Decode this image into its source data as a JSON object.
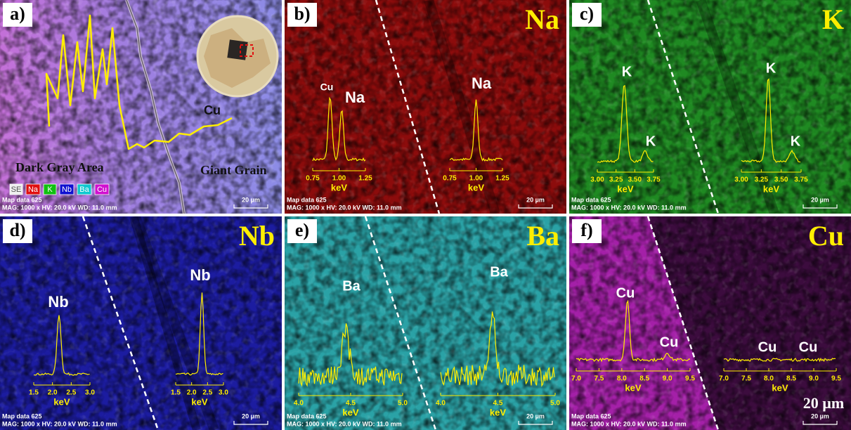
{
  "figure": {
    "map_info": "Map data 625",
    "mag_info": "MAG: 1000 x  HV: 20.0 kV  WD: 11.0 mm",
    "scale_bar": "20 µm",
    "scale_large": "20 µm",
    "panels": [
      {
        "label": "a)",
        "annotations": {
          "line_label": "Cu",
          "left_region": "Dark Gray Area",
          "right_region": "Giant Grain"
        },
        "legend": [
          "SE",
          "Na",
          "K",
          "Nb",
          "Ba",
          "Cu"
        ]
      },
      {
        "label": "b)",
        "element": "Na",
        "spectra": [
          {
            "peaks": [
              "Cu",
              "Na"
            ],
            "ticks": [
              "0.75",
              "1.00",
              "1.25"
            ],
            "unit": "keV"
          },
          {
            "peaks": [
              "Na"
            ],
            "ticks": [
              "0.75",
              "1.00",
              "1.25"
            ],
            "unit": "keV"
          }
        ]
      },
      {
        "label": "c)",
        "element": "K",
        "spectra": [
          {
            "peaks": [
              "K",
              "K"
            ],
            "ticks": [
              "3.00",
              "3.25",
              "3.50",
              "3.75"
            ],
            "unit": "keV"
          },
          {
            "peaks": [
              "K",
              "K"
            ],
            "ticks": [
              "3.00",
              "3.25",
              "3.50",
              "3.75"
            ],
            "unit": "keV"
          }
        ]
      },
      {
        "label": "d)",
        "element": "Nb",
        "spectra": [
          {
            "peaks": [
              "Nb"
            ],
            "ticks": [
              "1.5",
              "2.0",
              "2.5",
              "3.0"
            ],
            "unit": "keV"
          },
          {
            "peaks": [
              "Nb"
            ],
            "ticks": [
              "1.5",
              "2.0",
              "2.5",
              "3.0"
            ],
            "unit": "keV"
          }
        ]
      },
      {
        "label": "e)",
        "element": "Ba",
        "spectra": [
          {
            "peaks": [
              "Ba"
            ],
            "ticks": [
              "4.0",
              "4.5",
              "5.0"
            ],
            "unit": "keV"
          },
          {
            "peaks": [
              "Ba"
            ],
            "ticks": [
              "4.0",
              "4.5",
              "5.0"
            ],
            "unit": "keV"
          }
        ]
      },
      {
        "label": "f)",
        "element": "Cu",
        "spectra": [
          {
            "peaks": [
              "Cu",
              "Cu"
            ],
            "ticks": [
              "7.0",
              "7.5",
              "8.0",
              "8.5",
              "9.0",
              "9.5"
            ],
            "unit": "keV"
          },
          {
            "peaks": [
              "Cu",
              "Cu"
            ],
            "ticks": [
              "7.0",
              "7.5",
              "8.0",
              "8.5",
              "9.0",
              "9.5"
            ],
            "unit": "keV"
          }
        ]
      }
    ]
  }
}
